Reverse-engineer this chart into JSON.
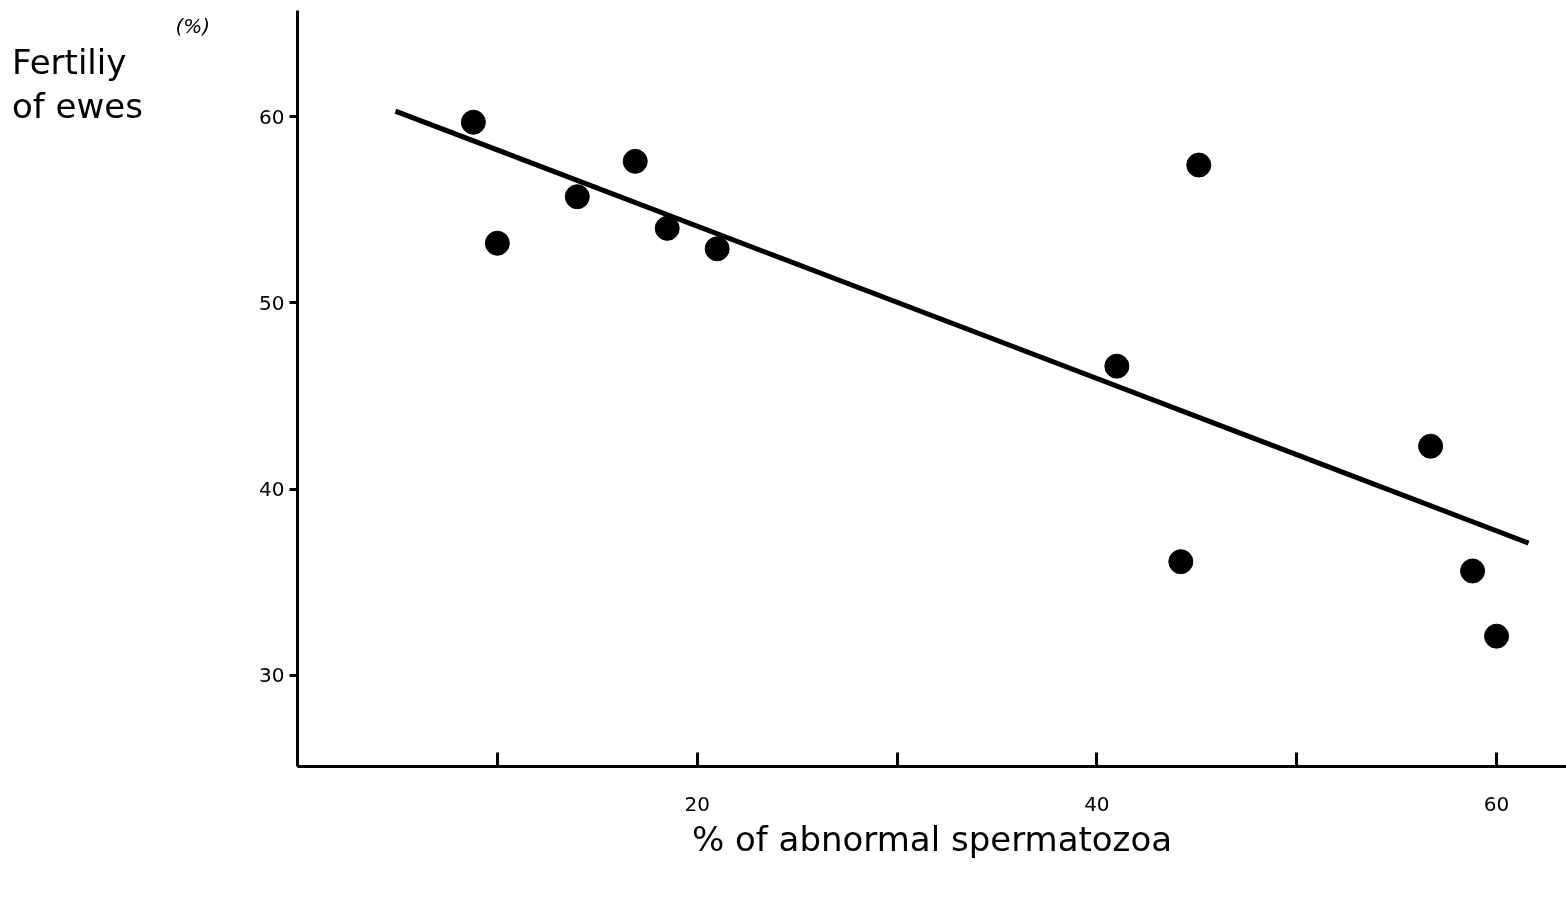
{
  "chart_data": {
    "type": "scatter",
    "xlabel": "% of abnormal spermatozoa",
    "ylabel": "Fertiliy of ewes",
    "annotations": [
      "(%)"
    ],
    "xlim": [
      0,
      63.5
    ],
    "ylim": [
      25.1,
      65.7
    ],
    "xticks": [
      {
        "value": 10,
        "label": null
      },
      20,
      {
        "value": 30,
        "label": null
      },
      40,
      {
        "value": 50,
        "label": null
      },
      60
    ],
    "yticks": [
      30,
      40,
      50,
      60
    ],
    "grid": false,
    "series": [
      {
        "color": "#000000",
        "marker": "circle",
        "x": [
          8.8,
          10.0,
          14.0,
          16.9,
          18.5,
          21.0,
          41.0,
          45.1,
          44.2,
          56.7,
          58.8,
          60.0
        ],
        "values": [
          59.7,
          53.2,
          55.7,
          57.6,
          54.0,
          52.9,
          46.6,
          57.4,
          36.1,
          42.3,
          35.6,
          32.1
        ]
      },
      {
        "type": "line",
        "color": "#000000",
        "line_style": "solid",
        "x": [
          4.9,
          61.6
        ],
        "values": [
          60.3,
          37.1
        ]
      }
    ]
  }
}
